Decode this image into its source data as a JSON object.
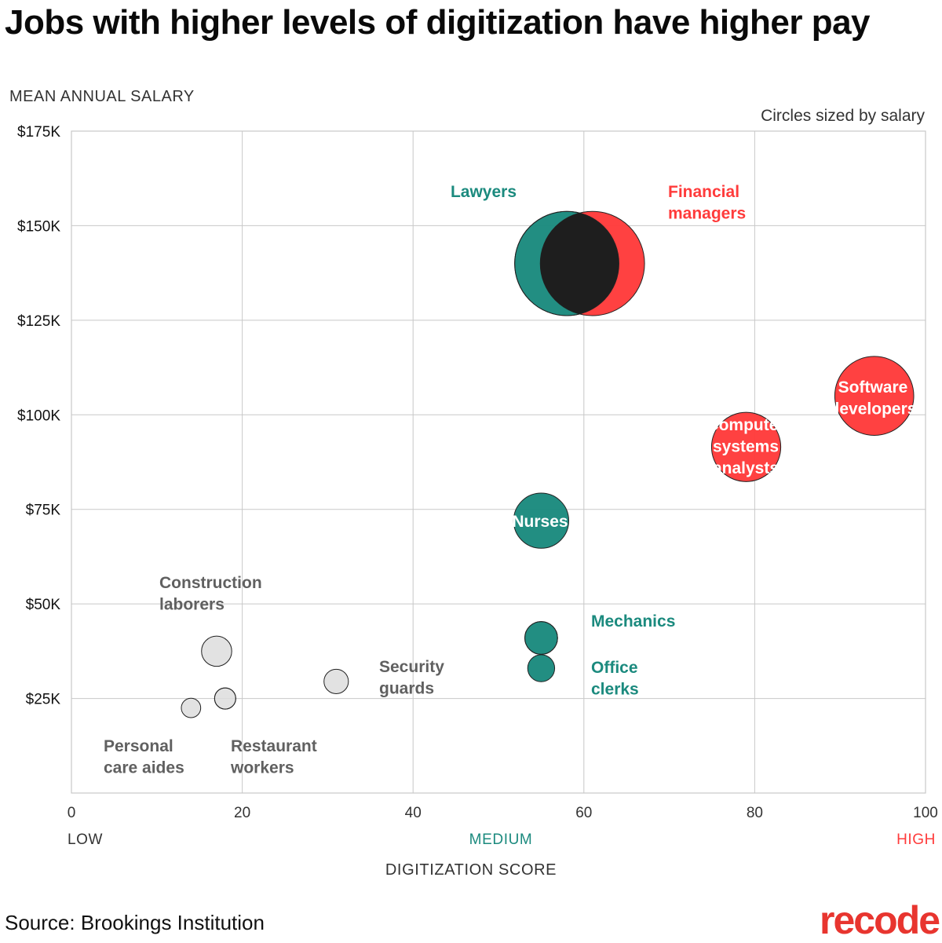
{
  "title": "Jobs with higher levels of digitization have higher pay",
  "source": "Source: Brookings Institution",
  "logo": "recode",
  "size_note": "Circles sized by salary",
  "colors": {
    "teal": "#1b8a7e",
    "red": "#ff3b3b",
    "gray": "#dcdcdc",
    "overlap_dark": "#1e1e1e",
    "label_gray": "#606060",
    "grid": "#c8c8c8"
  },
  "chart_data": {
    "type": "scatter",
    "title": "Jobs with higher levels of digitization have higher pay",
    "xlabel": "DIGITIZATION SCORE",
    "ylabel": "MEAN ANNUAL SALARY",
    "xlim": [
      0,
      100
    ],
    "ylim": [
      0,
      175000
    ],
    "x_ticks": [
      "0",
      "20",
      "40",
      "60",
      "80",
      "100"
    ],
    "x_tick_values": [
      0,
      20,
      40,
      60,
      80,
      100
    ],
    "y_ticks": [
      "$25K",
      "$50K",
      "$75K",
      "$100K",
      "$125K",
      "$150K",
      "$175K"
    ],
    "y_tick_values": [
      25000,
      50000,
      75000,
      100000,
      125000,
      150000,
      175000
    ],
    "x_levels": [
      {
        "label": "LOW",
        "color": "#333333"
      },
      {
        "label": "MEDIUM",
        "color": "#1b8a7e"
      },
      {
        "label": "HIGH",
        "color": "#ff3b3b"
      }
    ],
    "grid": true,
    "size_encoding": "salary",
    "points": [
      {
        "name": "Lawyers",
        "lines": [
          "Lawyers"
        ],
        "x": 58,
        "y": 140000,
        "group": "medium"
      },
      {
        "name": "Financial managers",
        "lines": [
          "Financial",
          "managers"
        ],
        "x": 61,
        "y": 140000,
        "group": "high"
      },
      {
        "name": "Software developers",
        "lines": [
          "Software",
          "developers"
        ],
        "x": 94,
        "y": 105000,
        "group": "high"
      },
      {
        "name": "Computer systems analysts",
        "lines": [
          "Computer",
          "systems",
          "analysts"
        ],
        "x": 79,
        "y": 91500,
        "group": "high"
      },
      {
        "name": "Nurses",
        "lines": [
          "Nurses"
        ],
        "x": 55,
        "y": 72000,
        "group": "medium"
      },
      {
        "name": "Mechanics",
        "lines": [
          "Mechanics"
        ],
        "x": 55,
        "y": 41000,
        "group": "medium"
      },
      {
        "name": "Office clerks",
        "lines": [
          "Office",
          "clerks"
        ],
        "x": 55,
        "y": 33000,
        "group": "medium"
      },
      {
        "name": "Construction laborers",
        "lines": [
          "Construction",
          "laborers"
        ],
        "x": 17,
        "y": 37500,
        "group": "low"
      },
      {
        "name": "Security guards",
        "lines": [
          "Security",
          "guards"
        ],
        "x": 31,
        "y": 29500,
        "group": "low"
      },
      {
        "name": "Restaurant workers",
        "lines": [
          "Restaurant",
          "workers"
        ],
        "x": 18,
        "y": 25000,
        "group": "low"
      },
      {
        "name": "Personal care aides",
        "lines": [
          "Personal",
          "care aides"
        ],
        "x": 14,
        "y": 22500,
        "group": "low"
      }
    ]
  }
}
